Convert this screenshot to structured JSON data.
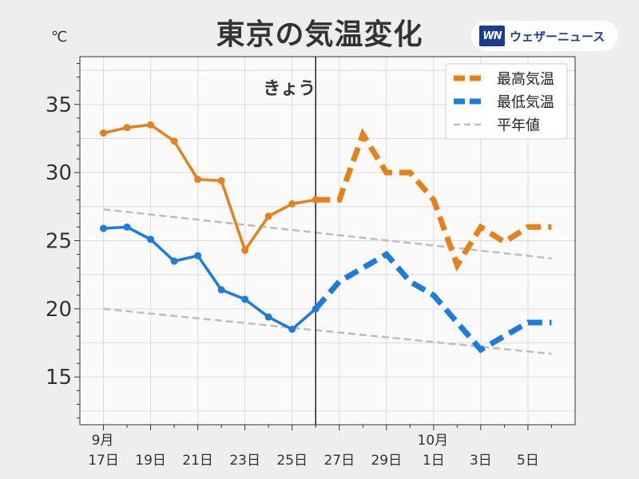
{
  "title": "東京の気温変化",
  "unit": "℃",
  "brand": {
    "mark": "WN",
    "name": "ウェザーニュース"
  },
  "chart_data": {
    "type": "line",
    "ylim": [
      11.5,
      38.5
    ],
    "yticks": [
      15,
      20,
      25,
      30,
      35
    ],
    "xlim": [
      -1,
      20
    ],
    "today_index": 9,
    "today_label": "きょう",
    "grid": true,
    "legend_position": "top-right",
    "x_tick_positions": [
      0,
      2,
      4,
      6,
      8,
      10,
      12,
      14,
      16,
      18
    ],
    "x_tick_labels": [
      "17日",
      "19日",
      "21日",
      "23日",
      "25日",
      "27日",
      "29日",
      "1日",
      "3日",
      "5日"
    ],
    "month_labels": [
      {
        "pos": 0,
        "text": "9月"
      },
      {
        "pos": 14,
        "text": "10月"
      }
    ],
    "series": [
      {
        "name": "最高気温",
        "color": "#e8801a",
        "x": [
          0,
          1,
          2,
          3,
          4,
          5,
          6,
          7,
          8,
          9,
          10,
          11,
          12,
          13,
          14,
          15,
          16,
          17,
          18,
          19
        ],
        "values": [
          32.9,
          33.3,
          33.5,
          32.3,
          29.5,
          29.4,
          24.3,
          26.8,
          27.7,
          28.0,
          28.0,
          32.8,
          30.0,
          30.0,
          28.0,
          23.2,
          26.0,
          24.9,
          26.0,
          26.0
        ]
      },
      {
        "name": "最低気温",
        "color": "#1a7be0",
        "x": [
          0,
          1,
          2,
          3,
          4,
          5,
          6,
          7,
          8,
          9,
          10,
          11,
          12,
          13,
          14,
          15,
          16,
          17,
          18,
          19
        ],
        "values": [
          25.9,
          26.0,
          25.1,
          23.5,
          23.9,
          21.4,
          20.7,
          19.4,
          18.5,
          20.0,
          22.0,
          23.0,
          24.0,
          22.0,
          21.0,
          19.0,
          17.0,
          18.0,
          19.0,
          19.0
        ]
      },
      {
        "name": "平年値",
        "color": "#bdbdbd",
        "x": [
          0,
          19
        ],
        "values": [
          27.3,
          23.7
        ]
      },
      {
        "name": "",
        "color": "#bdbdbd",
        "x": [
          0,
          19
        ],
        "values": [
          20.0,
          16.7
        ]
      }
    ]
  }
}
